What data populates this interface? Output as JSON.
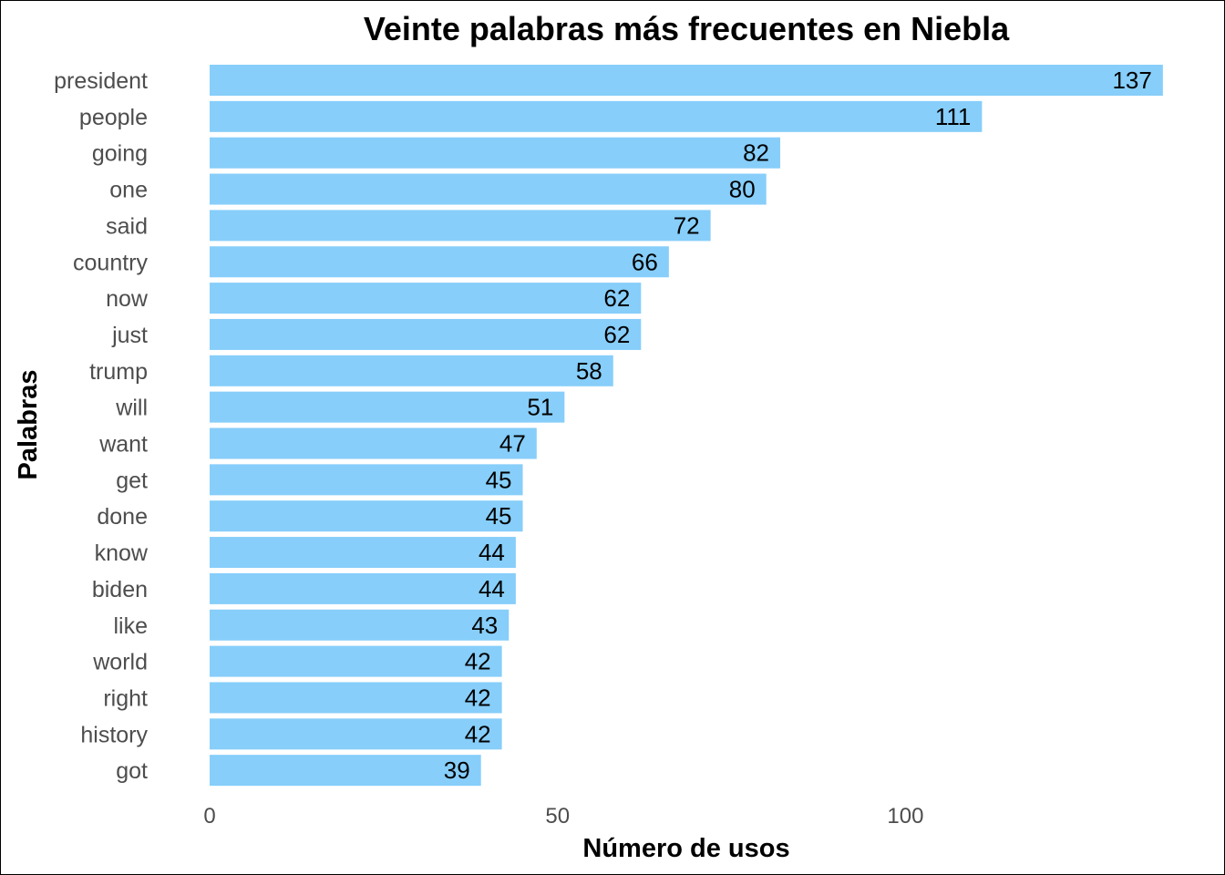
{
  "chart_data": {
    "type": "bar",
    "orientation": "horizontal",
    "title": "Veinte palabras más frecuentes en Niebla",
    "xlabel": "Número de usos",
    "ylabel": "Palabras",
    "categories": [
      "president",
      "people",
      "going",
      "one",
      "said",
      "country",
      "now",
      "just",
      "trump",
      "will",
      "want",
      "get",
      "done",
      "know",
      "biden",
      "like",
      "world",
      "right",
      "history",
      "got"
    ],
    "values": [
      137,
      111,
      82,
      80,
      72,
      66,
      62,
      62,
      58,
      51,
      47,
      45,
      45,
      44,
      44,
      43,
      42,
      42,
      42,
      39
    ],
    "xlim": [
      0,
      137
    ],
    "xticks": [
      0,
      50,
      100
    ],
    "grid": false,
    "legend": "none",
    "bar_color": "#87CEFA",
    "data_labels": true
  }
}
